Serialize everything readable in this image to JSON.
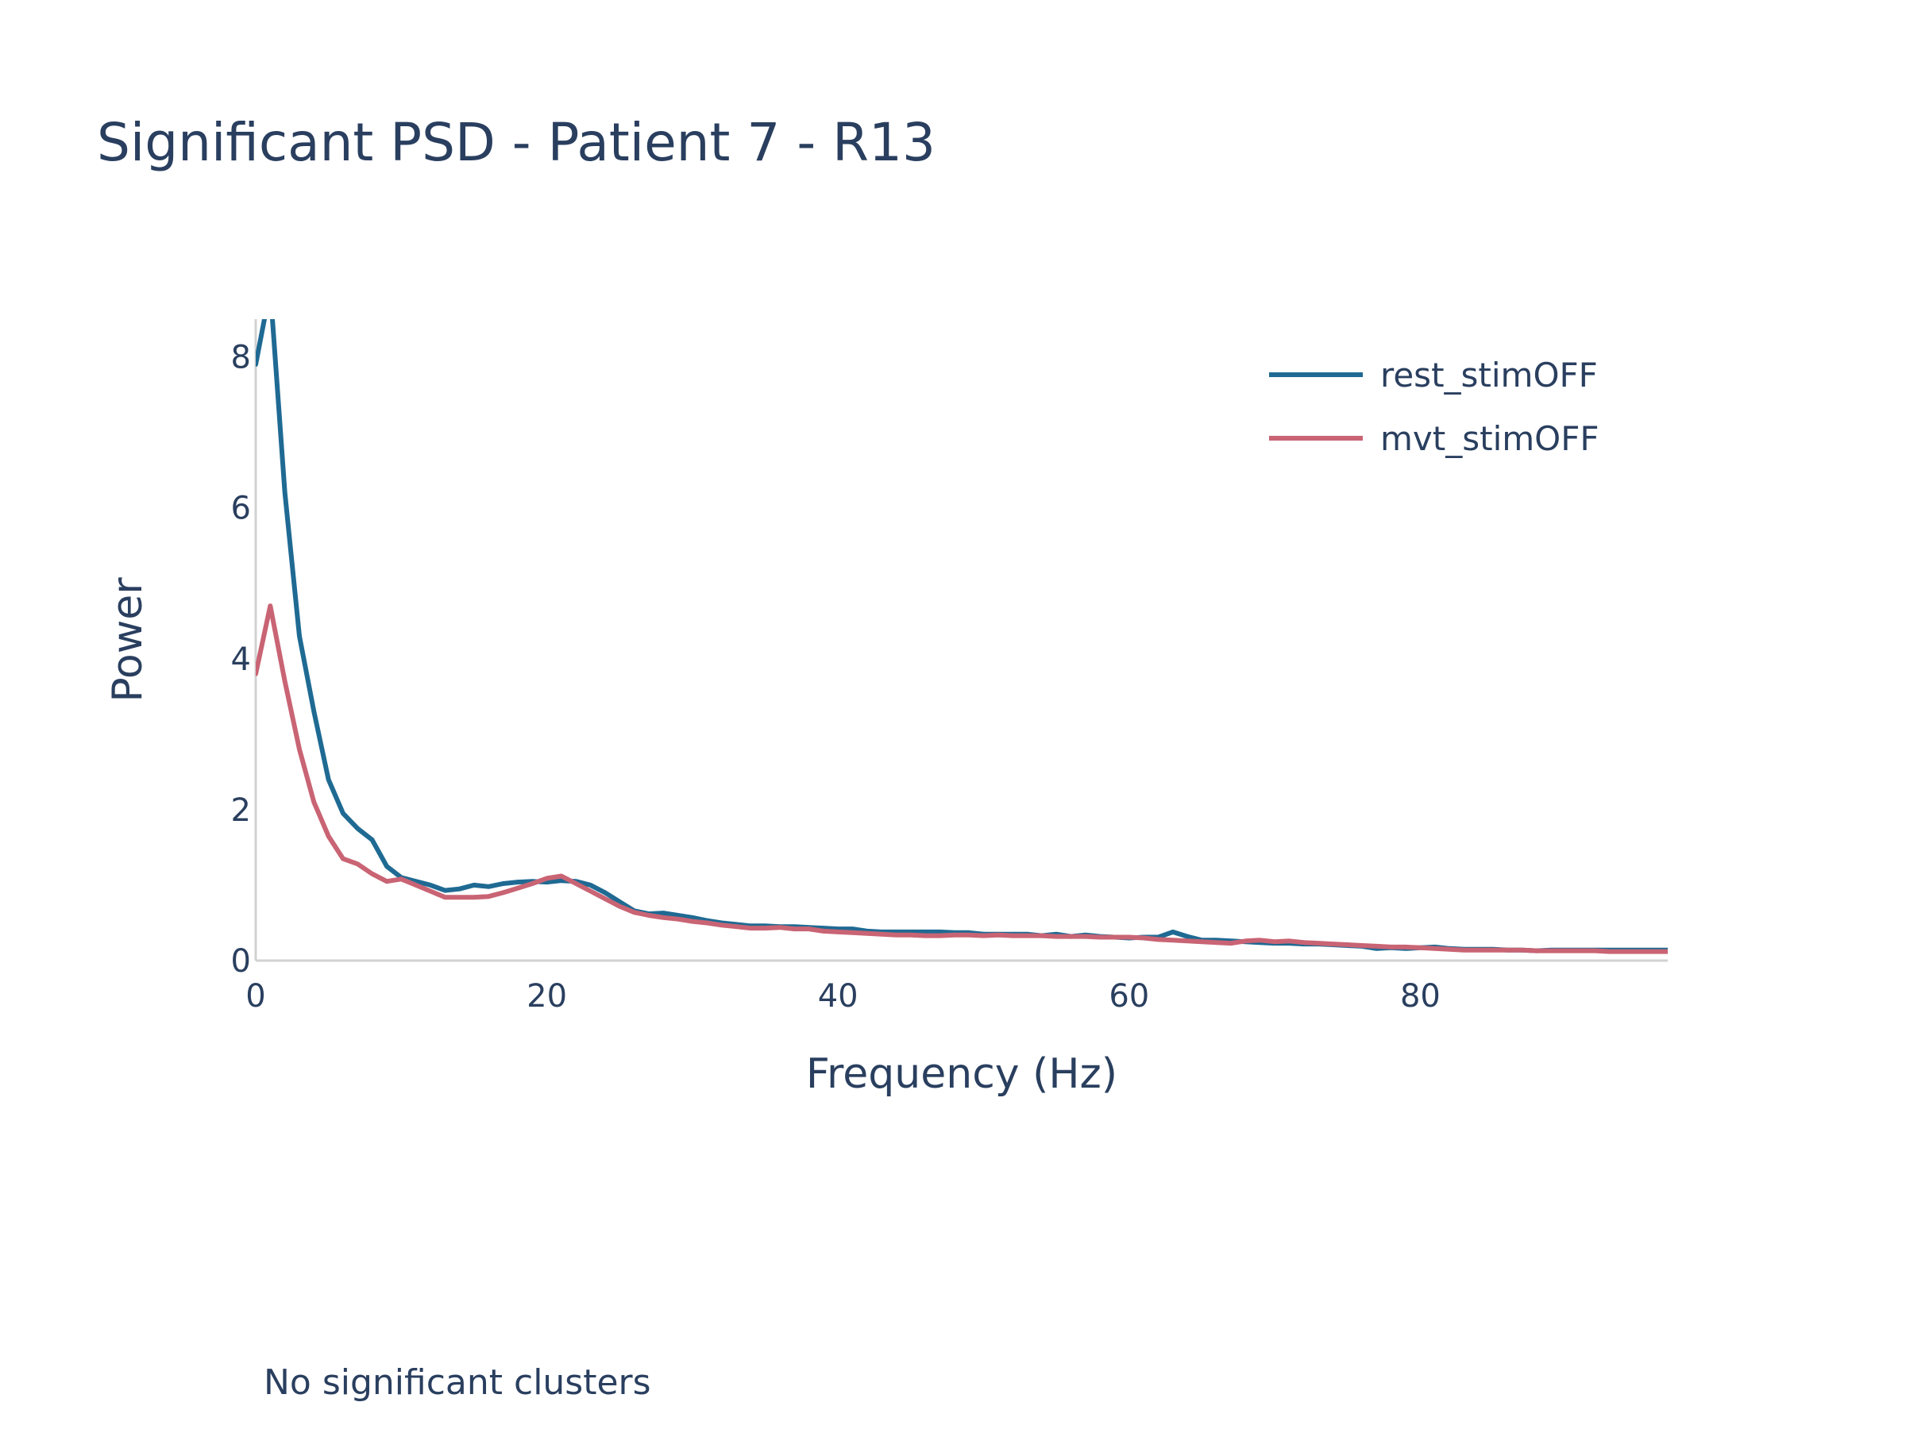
{
  "chart_data": {
    "type": "line",
    "title": "Significant PSD - Patient 7 - R13",
    "xlabel": "Frequency (Hz)",
    "ylabel": "Power",
    "xlim": [
      0,
      97
    ],
    "ylim": [
      0,
      8.5
    ],
    "x_ticks": [
      0,
      20,
      40,
      60,
      80
    ],
    "y_ticks": [
      0,
      2,
      4,
      6,
      8
    ],
    "grid": false,
    "legend_position": "top-right",
    "annotation": "No significant clusters",
    "series": [
      {
        "name": "rest_stimOFF",
        "color": "#1f6a93",
        "x": [
          0,
          1,
          2,
          3,
          4,
          5,
          6,
          7,
          8,
          9,
          10,
          11,
          12,
          13,
          14,
          15,
          16,
          17,
          18,
          19,
          20,
          21,
          22,
          23,
          24,
          25,
          26,
          27,
          28,
          29,
          30,
          31,
          32,
          33,
          34,
          35,
          36,
          37,
          38,
          39,
          40,
          41,
          42,
          43,
          44,
          45,
          46,
          47,
          48,
          49,
          50,
          51,
          52,
          53,
          54,
          55,
          56,
          57,
          58,
          59,
          60,
          61,
          62,
          63,
          64,
          65,
          66,
          67,
          68,
          69,
          70,
          71,
          72,
          73,
          74,
          75,
          76,
          77,
          78,
          79,
          80,
          81,
          82,
          83,
          84,
          85,
          86,
          87,
          88,
          89,
          90,
          91,
          92,
          93,
          94,
          95,
          96,
          97
        ],
        "y": [
          7.9,
          8.9,
          6.2,
          4.3,
          3.3,
          2.4,
          1.95,
          1.75,
          1.6,
          1.25,
          1.1,
          1.05,
          1.0,
          0.93,
          0.95,
          1.0,
          0.98,
          1.02,
          1.04,
          1.05,
          1.04,
          1.06,
          1.05,
          1.0,
          0.9,
          0.78,
          0.66,
          0.62,
          0.63,
          0.6,
          0.57,
          0.53,
          0.5,
          0.48,
          0.46,
          0.46,
          0.45,
          0.45,
          0.44,
          0.43,
          0.42,
          0.42,
          0.39,
          0.38,
          0.38,
          0.38,
          0.38,
          0.38,
          0.37,
          0.37,
          0.35,
          0.35,
          0.35,
          0.35,
          0.33,
          0.35,
          0.32,
          0.34,
          0.32,
          0.31,
          0.3,
          0.31,
          0.31,
          0.38,
          0.32,
          0.27,
          0.27,
          0.26,
          0.25,
          0.24,
          0.23,
          0.23,
          0.22,
          0.22,
          0.21,
          0.2,
          0.19,
          0.16,
          0.17,
          0.16,
          0.17,
          0.18,
          0.16,
          0.15,
          0.15,
          0.15,
          0.14,
          0.14,
          0.13,
          0.14,
          0.14,
          0.14,
          0.14,
          0.14,
          0.14,
          0.14,
          0.14,
          0.14
        ]
      },
      {
        "name": "mvt_stimOFF",
        "color": "#c96474",
        "x": [
          0,
          1,
          2,
          3,
          4,
          5,
          6,
          7,
          8,
          9,
          10,
          11,
          12,
          13,
          14,
          15,
          16,
          17,
          18,
          19,
          20,
          21,
          22,
          23,
          24,
          25,
          26,
          27,
          28,
          29,
          30,
          31,
          32,
          33,
          34,
          35,
          36,
          37,
          38,
          39,
          40,
          41,
          42,
          43,
          44,
          45,
          46,
          47,
          48,
          49,
          50,
          51,
          52,
          53,
          54,
          55,
          56,
          57,
          58,
          59,
          60,
          61,
          62,
          63,
          64,
          65,
          66,
          67,
          68,
          69,
          70,
          71,
          72,
          73,
          74,
          75,
          76,
          77,
          78,
          79,
          80,
          81,
          82,
          83,
          84,
          85,
          86,
          87,
          88,
          89,
          90,
          91,
          92,
          93,
          94,
          95,
          96,
          97
        ],
        "y": [
          3.8,
          4.7,
          3.7,
          2.8,
          2.1,
          1.65,
          1.35,
          1.28,
          1.15,
          1.05,
          1.08,
          1.0,
          0.92,
          0.84,
          0.84,
          0.84,
          0.85,
          0.9,
          0.96,
          1.02,
          1.09,
          1.12,
          1.02,
          0.92,
          0.82,
          0.72,
          0.64,
          0.6,
          0.57,
          0.55,
          0.52,
          0.5,
          0.47,
          0.45,
          0.43,
          0.43,
          0.44,
          0.42,
          0.42,
          0.39,
          0.38,
          0.37,
          0.36,
          0.35,
          0.34,
          0.34,
          0.33,
          0.33,
          0.34,
          0.34,
          0.33,
          0.34,
          0.33,
          0.33,
          0.33,
          0.32,
          0.32,
          0.32,
          0.31,
          0.31,
          0.31,
          0.3,
          0.28,
          0.27,
          0.26,
          0.25,
          0.24,
          0.23,
          0.26,
          0.27,
          0.25,
          0.26,
          0.24,
          0.23,
          0.22,
          0.21,
          0.2,
          0.19,
          0.18,
          0.18,
          0.17,
          0.16,
          0.15,
          0.14,
          0.14,
          0.14,
          0.14,
          0.14,
          0.13,
          0.13,
          0.13,
          0.13,
          0.13,
          0.12,
          0.12,
          0.12,
          0.12,
          0.12
        ]
      }
    ]
  }
}
